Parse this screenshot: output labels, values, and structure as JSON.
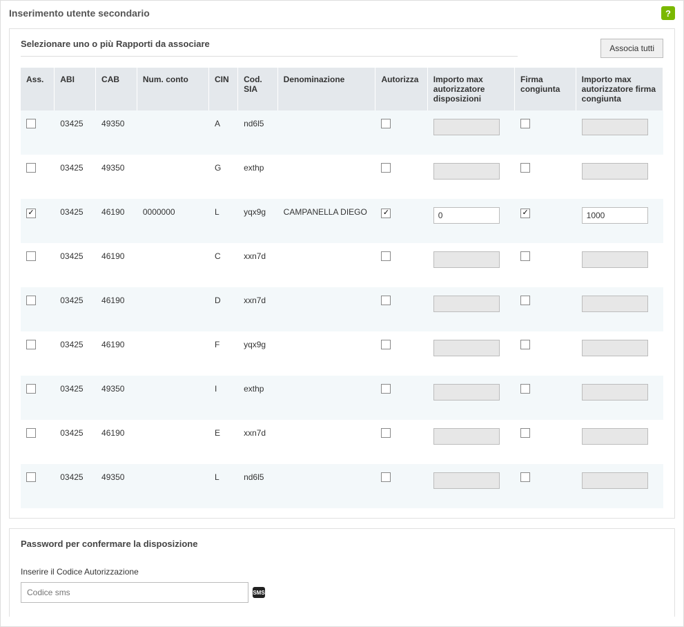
{
  "header": {
    "title": "Inserimento utente secondario",
    "help_label": "?"
  },
  "section": {
    "title": "Selezionare uno o più Rapporti da associare",
    "associate_all_label": "Associa tutti"
  },
  "columns": {
    "ass": "Ass.",
    "abi": "ABI",
    "cab": "CAB",
    "num_conto": "Num. conto",
    "cin": "CIN",
    "cod_sia": "Cod. SIA",
    "denominazione": "Denominazione",
    "autorizza": "Autorizza",
    "importo_max_disp": "Importo max autorizzatore disposizioni",
    "firma_congiunta": "Firma congiunta",
    "importo_max_fc": "Importo max autorizzatore firma congiunta"
  },
  "rows": [
    {
      "ass": false,
      "abi": "03425",
      "cab": "49350",
      "num_conto": "",
      "cin": "A",
      "cod_sia": "nd6l5",
      "denominazione": "",
      "autorizza": false,
      "importo_disp": "",
      "disp_enabled": false,
      "firma_congiunta": false,
      "importo_fc": "",
      "fc_enabled": false
    },
    {
      "ass": false,
      "abi": "03425",
      "cab": "49350",
      "num_conto": "",
      "cin": "G",
      "cod_sia": "exthp",
      "denominazione": "",
      "autorizza": false,
      "importo_disp": "",
      "disp_enabled": false,
      "firma_congiunta": false,
      "importo_fc": "",
      "fc_enabled": false
    },
    {
      "ass": true,
      "abi": "03425",
      "cab": "46190",
      "num_conto": "0000000",
      "cin": "L",
      "cod_sia": "yqx9g",
      "denominazione": "CAMPANELLA DIEGO",
      "autorizza": true,
      "importo_disp": "0",
      "disp_enabled": true,
      "firma_congiunta": true,
      "importo_fc": "1000",
      "fc_enabled": true
    },
    {
      "ass": false,
      "abi": "03425",
      "cab": "46190",
      "num_conto": "",
      "cin": "C",
      "cod_sia": "xxn7d",
      "denominazione": "",
      "autorizza": false,
      "importo_disp": "",
      "disp_enabled": false,
      "firma_congiunta": false,
      "importo_fc": "",
      "fc_enabled": false
    },
    {
      "ass": false,
      "abi": "03425",
      "cab": "46190",
      "num_conto": "",
      "cin": "D",
      "cod_sia": "xxn7d",
      "denominazione": "",
      "autorizza": false,
      "importo_disp": "",
      "disp_enabled": false,
      "firma_congiunta": false,
      "importo_fc": "",
      "fc_enabled": false
    },
    {
      "ass": false,
      "abi": "03425",
      "cab": "46190",
      "num_conto": "",
      "cin": "F",
      "cod_sia": "yqx9g",
      "denominazione": "",
      "autorizza": false,
      "importo_disp": "",
      "disp_enabled": false,
      "firma_congiunta": false,
      "importo_fc": "",
      "fc_enabled": false
    },
    {
      "ass": false,
      "abi": "03425",
      "cab": "49350",
      "num_conto": "",
      "cin": "I",
      "cod_sia": "exthp",
      "denominazione": "",
      "autorizza": false,
      "importo_disp": "",
      "disp_enabled": false,
      "firma_congiunta": false,
      "importo_fc": "",
      "fc_enabled": false
    },
    {
      "ass": false,
      "abi": "03425",
      "cab": "46190",
      "num_conto": "",
      "cin": "E",
      "cod_sia": "xxn7d",
      "denominazione": "",
      "autorizza": false,
      "importo_disp": "",
      "disp_enabled": false,
      "firma_congiunta": false,
      "importo_fc": "",
      "fc_enabled": false
    },
    {
      "ass": false,
      "abi": "03425",
      "cab": "49350",
      "num_conto": "",
      "cin": "L",
      "cod_sia": "nd6l5",
      "denominazione": "",
      "autorizza": false,
      "importo_disp": "",
      "disp_enabled": false,
      "firma_congiunta": false,
      "importo_fc": "",
      "fc_enabled": false
    }
  ],
  "password": {
    "section_title": "Password per confermare la disposizione",
    "label": "Inserire il Codice Autorizzazione",
    "placeholder": "Codice sms",
    "sms_badge": "SMS"
  }
}
